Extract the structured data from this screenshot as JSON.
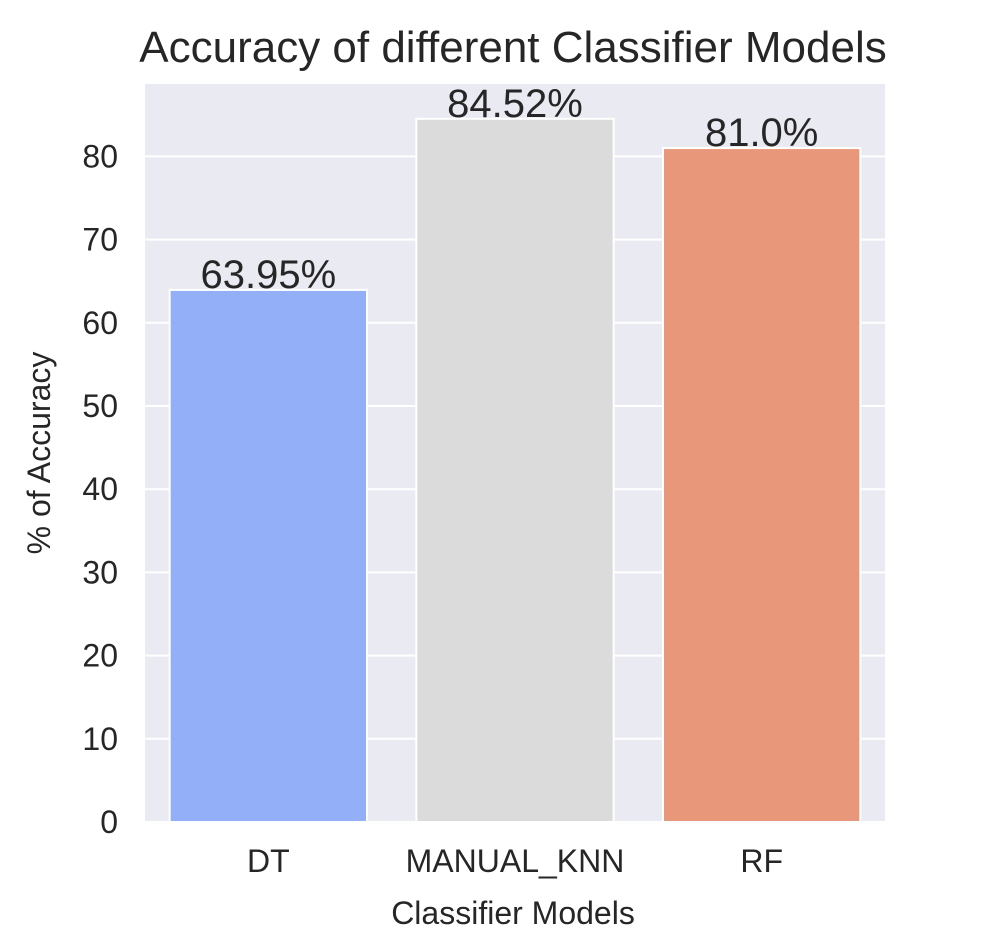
{
  "chart_data": {
    "type": "bar",
    "title": "Accuracy of different Classifier Models",
    "xlabel": "Classifier Models",
    "ylabel": "% of Accuracy",
    "categories": [
      "DT",
      "MANUAL_KNN",
      "RF"
    ],
    "values": [
      63.95,
      84.52,
      81.0
    ],
    "value_labels": [
      "63.95%",
      "84.52%",
      "81.0%"
    ],
    "colors": [
      "#93AFF8",
      "#DBDBDB",
      "#E8977A"
    ],
    "ylim": [
      0,
      88.7
    ],
    "yticks": [
      0,
      10,
      20,
      30,
      40,
      50,
      60,
      70,
      80
    ],
    "grid": true,
    "plot_background": "#EAEAF2"
  }
}
